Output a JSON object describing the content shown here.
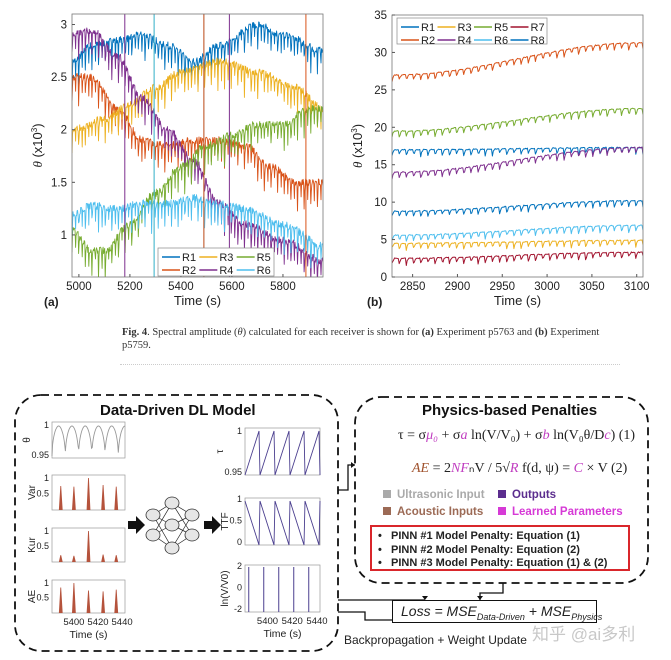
{
  "chart_data": [
    {
      "type": "line",
      "panel_label": "(a)",
      "xlabel": "Time (s)",
      "ylabel": "θ (x10",
      "ylabel_sup": "3",
      "ylabel_end": ")",
      "xlim": [
        4973,
        5957
      ],
      "ylim": [
        0.6,
        3.1
      ],
      "xticks": [
        "5000",
        "5200",
        "5400",
        "5600",
        "5800"
      ],
      "xtick_values": [
        5000,
        5200,
        5400,
        5600,
        5800
      ],
      "yticks": [
        "1",
        "1.5",
        "2",
        "2.5",
        "3"
      ],
      "ytick_values": [
        1,
        1.5,
        2,
        2.5,
        3
      ],
      "legend_position": "bottom-right",
      "legend_columns": 3,
      "series": [
        {
          "name": "R1",
          "color": "#0072BD",
          "x": [
            4975,
            5050,
            5150,
            5250,
            5350,
            5450,
            5550,
            5700,
            5800,
            5960
          ],
          "y": [
            2.65,
            2.8,
            2.85,
            2.9,
            2.8,
            2.65,
            2.8,
            3.0,
            2.9,
            2.75
          ]
        },
        {
          "name": "R2",
          "color": "#D95319",
          "x": [
            4975,
            5050,
            5150,
            5250,
            5350,
            5450,
            5550,
            5650,
            5750,
            5850,
            5960
          ],
          "y": [
            2.5,
            2.5,
            2.2,
            1.9,
            1.85,
            1.9,
            1.9,
            1.85,
            1.65,
            1.5,
            1.5
          ]
        },
        {
          "name": "R3",
          "color": "#EDB120",
          "x": [
            4975,
            5100,
            5200,
            5300,
            5400,
            5550,
            5700,
            5850,
            5960
          ],
          "y": [
            2.0,
            2.1,
            2.25,
            2.4,
            2.55,
            2.65,
            2.55,
            2.4,
            2.2
          ]
        },
        {
          "name": "R4",
          "color": "#7E2F8E",
          "x": [
            4975,
            5050,
            5150,
            5250,
            5350,
            5450,
            5550,
            5650,
            5800,
            5960
          ],
          "y": [
            2.9,
            2.95,
            2.7,
            2.3,
            2.0,
            1.7,
            1.3,
            1.1,
            0.95,
            0.75
          ]
        },
        {
          "name": "R5",
          "color": "#77AC30",
          "x": [
            4975,
            5050,
            5100,
            5200,
            5300,
            5400,
            5500,
            5600,
            5700,
            5800,
            5900,
            5960
          ],
          "y": [
            1.05,
            0.85,
            0.85,
            1.1,
            1.4,
            1.65,
            1.85,
            1.95,
            2.05,
            2.05,
            2.2,
            2.2
          ]
        },
        {
          "name": "R6",
          "color": "#4DBEEE",
          "x": [
            4975,
            5050,
            5150,
            5250,
            5350,
            5450,
            5550,
            5650,
            5800,
            5960
          ],
          "y": [
            1.2,
            1.28,
            1.25,
            1.3,
            1.3,
            1.35,
            1.3,
            1.25,
            1.1,
            0.9
          ]
        }
      ]
    },
    {
      "type": "line",
      "panel_label": "(b)",
      "xlabel": "Time (s)",
      "ylabel": "θ (x10",
      "ylabel_sup": "3",
      "ylabel_end": ")",
      "xlim": [
        2827,
        3107
      ],
      "ylim": [
        0,
        35
      ],
      "xticks": [
        "2850",
        "2900",
        "2950",
        "3000",
        "3050",
        "3100"
      ],
      "xtick_values": [
        2850,
        2900,
        2950,
        3000,
        3050,
        3100
      ],
      "yticks": [
        "0",
        "5",
        "10",
        "15",
        "20",
        "25",
        "30",
        "35"
      ],
      "ytick_values": [
        0,
        5,
        10,
        15,
        20,
        25,
        30,
        35
      ],
      "legend_position": "top-left",
      "legend_columns": 4,
      "series": [
        {
          "name": "R1",
          "color": "#0072BD",
          "x": [
            2830,
            3105
          ],
          "y": [
            17.0,
            17.3
          ]
        },
        {
          "name": "R2",
          "color": "#D95319",
          "x": [
            2830,
            3105
          ],
          "y": [
            27.0,
            31.3
          ]
        },
        {
          "name": "R3",
          "color": "#EDB120",
          "x": [
            2830,
            3105
          ],
          "y": [
            4.5,
            4.9
          ]
        },
        {
          "name": "R4",
          "color": "#7E2F8E",
          "x": [
            2830,
            3105
          ],
          "y": [
            14.0,
            17.3
          ]
        },
        {
          "name": "R5",
          "color": "#77AC30",
          "x": [
            2830,
            3105
          ],
          "y": [
            19.5,
            22.5
          ]
        },
        {
          "name": "R6",
          "color": "#4DBEEE",
          "x": [
            2830,
            3105
          ],
          "y": [
            5.6,
            6.9
          ]
        },
        {
          "name": "R7",
          "color": "#A2142F",
          "x": [
            2830,
            3105
          ],
          "y": [
            2.5,
            3.3
          ]
        },
        {
          "name": "R8",
          "color": "#0072BD",
          "x": [
            2830,
            3105
          ],
          "y": [
            8.8,
            10.2
          ]
        }
      ]
    }
  ],
  "caption": {
    "fig_label": "Fig. 4",
    "text_1": ". Spectral amplitude (",
    "theta": "θ",
    "text_2": ") calculated for each receiver is shown for ",
    "a_label": "(a)",
    "text_3": " Experiment p5763 and ",
    "b_label": "(b)",
    "text_4": " Experiment p5759."
  },
  "diagram": {
    "dl_title": "Data-Driven DL Model",
    "physics_title": "Physics-based Penalties",
    "inputs": [
      {
        "ylabel": "θ",
        "yticks": [
          "1",
          "0.95"
        ],
        "color": "#999999",
        "kind": "arcs"
      },
      {
        "ylabel": "Var",
        "yticks": [
          "1",
          "0.5"
        ],
        "color": "#b5533c",
        "kind": "spikes",
        "peaks": [
          0.75,
          0.73,
          1.0,
          0.78,
          0.73
        ]
      },
      {
        "ylabel": "Kur",
        "yticks": [
          "1",
          "0.5"
        ],
        "color": "#b5533c",
        "kind": "spikes",
        "peaks": [
          0.22,
          0.2,
          1.0,
          0.24,
          0.22
        ]
      },
      {
        "ylabel": "AE",
        "yticks": [
          "1",
          "0.5"
        ],
        "color": "#b5533c",
        "kind": "spikes",
        "peaks": [
          0.85,
          1.0,
          0.75,
          0.72,
          0.78
        ]
      }
    ],
    "outputs": [
      {
        "ylabel": "τ",
        "yticks": [
          "1",
          "0.95"
        ],
        "color": "#4b3f8f",
        "kind": "saw-up"
      },
      {
        "ylabel": "TTF",
        "yticks": [
          "1",
          "0.5",
          "0"
        ],
        "color": "#4b3f8f",
        "kind": "saw-down"
      },
      {
        "ylabel": "ln(V/V0)",
        "yticks": [
          "2",
          "0",
          "-2"
        ],
        "color": "#4b3f8f",
        "kind": "pulses"
      }
    ],
    "mini_xticks": [
      "5400",
      "5420",
      "5440"
    ],
    "mini_xlabel": "Time (s)",
    "eq1": [
      {
        "t": "τ = ",
        "c": "#222"
      },
      {
        "t": "σ",
        "c": "#222"
      },
      {
        "t": "μ₀",
        "c": "#c03cc0"
      },
      {
        "t": " + σ",
        "c": "#222"
      },
      {
        "t": "a",
        "c": "#c03cc0"
      },
      {
        "t": " ln(V/V₀) + σ",
        "c": "#222"
      },
      {
        "t": "b",
        "c": "#c03cc0"
      },
      {
        "t": " ln(V₀θ/D",
        "c": "#222"
      },
      {
        "t": "c",
        "c": "#c03cc0"
      },
      {
        "t": ") (1)",
        "c": "#222"
      }
    ],
    "eq2": [
      {
        "t": "AE",
        "c": "#a0522d"
      },
      {
        "t": " = 2",
        "c": "#222"
      },
      {
        "t": "NF",
        "c": "#c03cc0"
      },
      {
        "t": "ₙV / 5√",
        "c": "#222"
      },
      {
        "t": "R",
        "c": "#c03cc0"
      },
      {
        "t": " f(d, ψ) = ",
        "c": "#222"
      },
      {
        "t": "C",
        "c": "#c03cc0"
      },
      {
        "t": " × V (2)",
        "c": "#222"
      }
    ],
    "legend": [
      {
        "label": "Ultrasonic Input",
        "color": "#aaaaaa"
      },
      {
        "label": "Outputs",
        "color": "#5b2d8e"
      },
      {
        "label": "Acoustic Inputs",
        "color": "#9c6a55"
      },
      {
        "label": "Learned Parameters",
        "color": "#d63ad6"
      }
    ],
    "penalties": [
      "PINN #1 Model Penalty: Equation (1)",
      "PINN #2 Model Penalty: Equation (2)",
      "PINN #3 Model Penalty: Equation (1) & (2)"
    ],
    "bullet": "•",
    "loss_prefix": "Loss = MSE",
    "loss_sub1": "Data-Driven",
    "loss_mid": " + MSE",
    "loss_sub2": "Physics",
    "backprop": "Backpropagation + Weight Update",
    "watermark": "知乎 @ai多利"
  }
}
